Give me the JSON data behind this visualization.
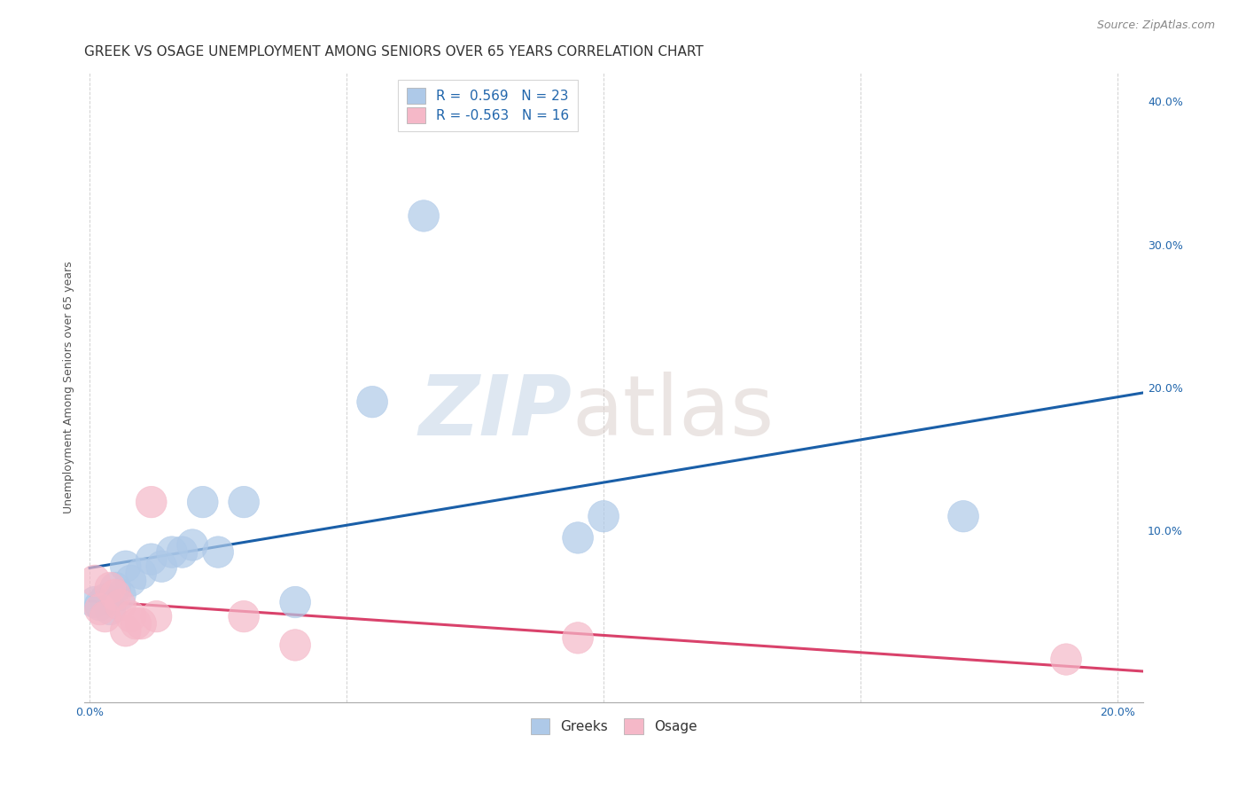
{
  "title": "GREEK VS OSAGE UNEMPLOYMENT AMONG SENIORS OVER 65 YEARS CORRELATION CHART",
  "source": "Source: ZipAtlas.com",
  "ylabel": "Unemployment Among Seniors over 65 years",
  "xlim": [
    -0.001,
    0.205
  ],
  "ylim": [
    -0.02,
    0.42
  ],
  "yticks": [
    0.0,
    0.1,
    0.2,
    0.3,
    0.4
  ],
  "ytick_labels": [
    "",
    "10.0%",
    "20.0%",
    "30.0%",
    "40.0%"
  ],
  "xticks": [
    0.0,
    0.05,
    0.1,
    0.15,
    0.2
  ],
  "xtick_labels": [
    "0.0%",
    "",
    "",
    "",
    "20.0%"
  ],
  "legend_r1": "R =  0.569   N = 23",
  "legend_r2": "R = -0.563   N = 16",
  "blue_scatter_color": "#aec9e8",
  "pink_scatter_color": "#f5b8c8",
  "blue_line_color": "#1a5fa8",
  "pink_line_color": "#d9426b",
  "background_color": "#ffffff",
  "greeks_x": [
    0.001,
    0.002,
    0.003,
    0.004,
    0.005,
    0.006,
    0.007,
    0.008,
    0.01,
    0.012,
    0.014,
    0.016,
    0.018,
    0.02,
    0.022,
    0.025,
    0.03,
    0.04,
    0.055,
    0.065,
    0.095,
    0.1,
    0.17
  ],
  "greeks_y": [
    0.05,
    0.048,
    0.052,
    0.045,
    0.06,
    0.055,
    0.075,
    0.065,
    0.07,
    0.08,
    0.075,
    0.085,
    0.085,
    0.09,
    0.12,
    0.085,
    0.12,
    0.05,
    0.19,
    0.32,
    0.095,
    0.11,
    0.11
  ],
  "osage_x": [
    0.001,
    0.002,
    0.003,
    0.004,
    0.005,
    0.006,
    0.007,
    0.008,
    0.009,
    0.01,
    0.012,
    0.013,
    0.03,
    0.04,
    0.095,
    0.19
  ],
  "osage_y": [
    0.065,
    0.045,
    0.04,
    0.06,
    0.055,
    0.048,
    0.03,
    0.04,
    0.035,
    0.035,
    0.12,
    0.04,
    0.04,
    0.02,
    0.025,
    0.01
  ],
  "title_fontsize": 11,
  "axis_label_fontsize": 9,
  "tick_fontsize": 9,
  "legend_fontsize": 11,
  "source_fontsize": 9
}
